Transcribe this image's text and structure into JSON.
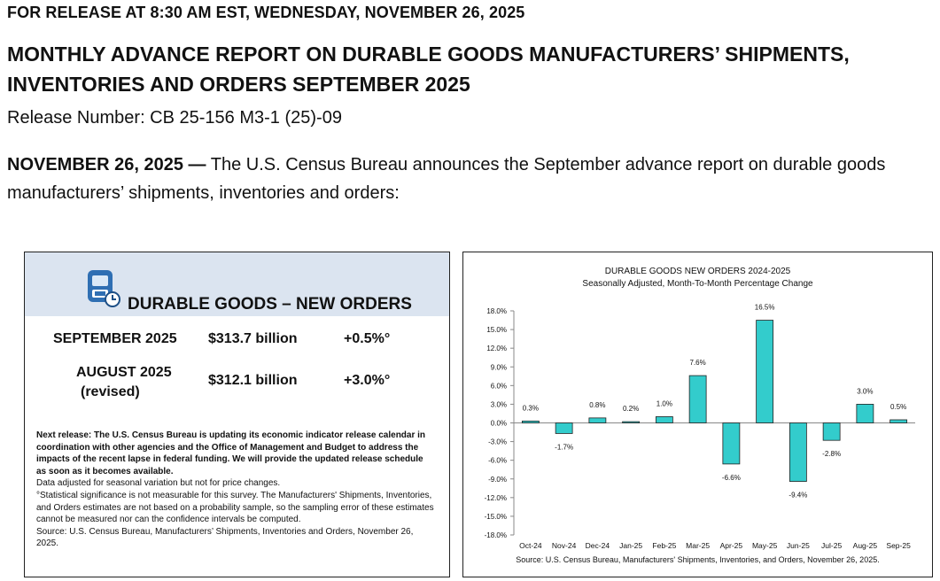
{
  "header": {
    "release_line": "FOR RELEASE AT 8:30 AM EST, WEDNESDAY, NOVEMBER 26, 2025",
    "title": "MONTHLY ADVANCE REPORT ON DURABLE GOODS MANUFACTURERS’ SHIPMENTS, INVENTORIES AND ORDERS SEPTEMBER 2025",
    "release_number": "Release Number: CB 25-156 M3-1 (25)-09",
    "lede_date": "NOVEMBER 26, 2025 —",
    "lede_text": " The U.S. Census Bureau announces the September advance report on durable goods manufacturers’ shipments, inventories and orders:"
  },
  "summary": {
    "icon": "calculator-clock-icon",
    "heading": "DURABLE GOODS – NEW ORDERS",
    "sep_label": "SEPTEMBER 2025",
    "sep_value": "$313.7 billion",
    "sep_change": "+0.5%°",
    "aug_label": "AUGUST 2025",
    "aug_revised": "(revised)",
    "aug_value": "$312.1 billion",
    "aug_change": "+3.0%°",
    "next_release": "Next release:  The U.S. Census Bureau is updating its economic indicator release calendar in coordination with other agencies and the Office of Management and Budget to address the impacts of the recent lapse in federal funding.  We will provide the updated release schedule as soon as it becomes available.",
    "seasonal_note": "Data adjusted for seasonal variation but not for price changes.",
    "stat_note": "°Statistical significance is not measurable for this survey.  The Manufacturers' Shipments, Inventories, and Orders estimates are not based on a probability sample, so the sampling error of these estimates cannot be measured nor can the confidence intervals be computed.",
    "source_note": "Source: U.S. Census Bureau, Manufacturers’ Shipments, Inventories and Orders, November 26, 2025."
  },
  "chart": {
    "bar_color": "#33cccc",
    "source": "Source: U.S. Census Bureau, Manufacturers' Shipments, Inventories, and Orders, November 26, 2025."
  },
  "chart_data": {
    "type": "bar",
    "title": "DURABLE GOODS NEW ORDERS 2024-2025",
    "subtitle": "Seasonally Adjusted,  Month-To-Month Percentage Change",
    "categories": [
      "Oct-24",
      "Nov-24",
      "Dec-24",
      "Jan-25",
      "Feb-25",
      "Mar-25",
      "Apr-25",
      "May-25",
      "Jun-25",
      "Jul-25",
      "Aug-25",
      "Sep-25"
    ],
    "values": [
      0.3,
      -1.7,
      0.8,
      0.2,
      1.0,
      7.6,
      -6.6,
      16.5,
      -9.4,
      -2.8,
      3.0,
      0.5
    ],
    "value_labels": [
      "0.3%",
      "-1.7%",
      "0.8%",
      "0.2%",
      "1.0%",
      "7.6%",
      "-6.6%",
      "16.5%",
      "-9.4%",
      "-2.8%",
      "3.0%",
      "0.5%"
    ],
    "ylim": [
      -18,
      18
    ],
    "yticks": [
      18,
      15,
      12,
      9,
      6,
      3,
      0,
      -3,
      -6,
      -9,
      -12,
      -15,
      -18
    ],
    "ytick_labels": [
      "18.0%",
      "15.0%",
      "12.0%",
      "9.0%",
      "6.0%",
      "3.0%",
      "0.0%",
      "-3.0%",
      "-6.0%",
      "-9.0%",
      "-12.0%",
      "-15.0%",
      "-18.0%"
    ],
    "xlabel": "",
    "ylabel": "",
    "grid": false,
    "legend": "none"
  }
}
